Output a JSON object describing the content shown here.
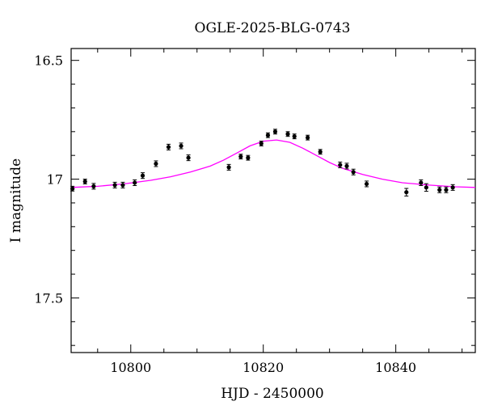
{
  "chart_data": {
    "type": "scatter",
    "title": "OGLE-2025-BLG-0743",
    "xlabel": "HJD - 2450000",
    "ylabel": "I magnitude",
    "xlim": [
      10791,
      10852
    ],
    "ylim": [
      17.73,
      16.45
    ],
    "y_inverted": true,
    "grid": false,
    "legend": "none",
    "x_ticks": [
      10800,
      10820,
      10840
    ],
    "x_tick_labels": [
      "10800",
      "10820",
      "10840"
    ],
    "y_ticks": [
      16.5,
      17,
      17.5
    ],
    "y_tick_labels": [
      "16.5",
      "17",
      "17.5"
    ],
    "series": [
      {
        "type": "scatter",
        "color": "#000000",
        "x": [
          10791.2,
          10793.1,
          10794.4,
          10797.6,
          10798.8,
          10800.6,
          10801.8,
          10803.8,
          10805.7,
          10807.6,
          10808.7,
          10814.8,
          10816.6,
          10817.7,
          10819.7,
          10820.7,
          10821.8,
          10823.7,
          10824.7,
          10826.7,
          10828.6,
          10831.6,
          10832.6,
          10833.6,
          10835.6,
          10841.6,
          10843.8,
          10844.6,
          10846.6,
          10847.6,
          10848.6
        ],
        "y": [
          17.04,
          17.01,
          17.03,
          17.025,
          17.025,
          17.015,
          16.985,
          16.935,
          16.865,
          16.86,
          16.91,
          16.95,
          16.905,
          16.91,
          16.85,
          16.815,
          16.8,
          16.81,
          16.82,
          16.825,
          16.885,
          16.94,
          16.945,
          16.97,
          17.02,
          17.055,
          17.015,
          17.035,
          17.045,
          17.045,
          17.035
        ],
        "yerr": [
          0.01,
          0.01,
          0.012,
          0.012,
          0.012,
          0.012,
          0.012,
          0.012,
          0.012,
          0.012,
          0.012,
          0.012,
          0.01,
          0.01,
          0.01,
          0.01,
          0.01,
          0.01,
          0.01,
          0.01,
          0.01,
          0.012,
          0.012,
          0.012,
          0.012,
          0.016,
          0.012,
          0.016,
          0.012,
          0.012,
          0.012
        ]
      },
      {
        "type": "line",
        "color": "#ff00ff",
        "x": [
          10791,
          10795,
          10799,
          10803,
          10806,
          10809,
          10812,
          10814,
          10816,
          10818,
          10820,
          10822,
          10824,
          10826,
          10828,
          10830,
          10832,
          10835,
          10838,
          10841,
          10845,
          10849,
          10852
        ],
        "y": [
          17.035,
          17.03,
          17.02,
          17.005,
          16.99,
          16.97,
          16.945,
          16.92,
          16.89,
          16.86,
          16.84,
          16.835,
          16.845,
          16.87,
          16.9,
          16.93,
          16.955,
          16.98,
          17.0,
          17.015,
          17.025,
          17.032,
          17.035
        ]
      }
    ]
  }
}
